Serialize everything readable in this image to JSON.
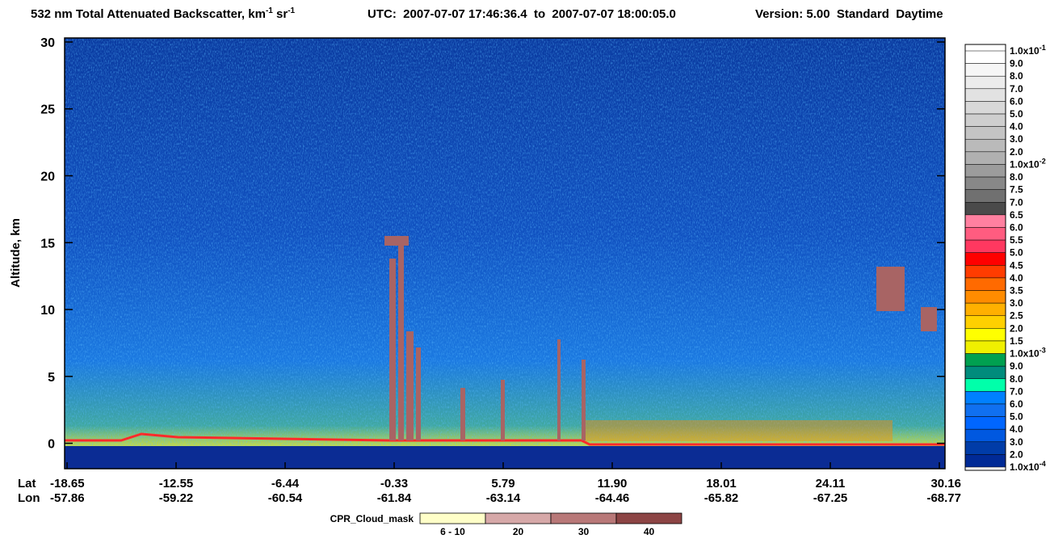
{
  "chart_data": {
    "type": "curtain",
    "title": [
      "532 nm Total Attenuated Backscatter, km",
      "-1",
      " sr",
      "-1"
    ],
    "time_range": "UTC:  2007-07-07 17:46:36.4  to  2007-07-07 18:00:05.0",
    "version": "Version: 5.00  Standard  Daytime",
    "y_label": "Altitude, km",
    "ylim": [
      -1.9,
      30.3
    ],
    "yticks": [
      0,
      5,
      10,
      15,
      20,
      25,
      30
    ],
    "x_row_labels": [
      "Lat",
      "Lon"
    ],
    "lat_ticks": [
      "-18.65",
      "-12.55",
      "-6.44",
      "-0.33",
      "5.79",
      "11.90",
      "18.01",
      "24.11",
      "30.16"
    ],
    "lon_ticks": [
      "-57.86",
      "-59.22",
      "-60.54",
      "-61.84",
      "-63.14",
      "-64.46",
      "-65.82",
      "-67.25",
      "-68.77"
    ],
    "colorbar": {
      "labels": [
        {
          "text": "1.0x10",
          "exp": "-1"
        },
        "9.0",
        "8.0",
        "7.0",
        "6.0",
        "5.0",
        "4.0",
        "3.0",
        "2.0",
        {
          "text": "1.0x10",
          "exp": "-2"
        },
        "8.0",
        "7.5",
        "7.0",
        "6.5",
        "6.0",
        "5.5",
        "5.0",
        "4.5",
        "4.0",
        "3.5",
        "3.0",
        "2.5",
        "2.0",
        "1.5",
        {
          "text": "1.0x10",
          "exp": "-3"
        },
        "9.0",
        "8.0",
        "7.0",
        "6.0",
        "5.0",
        "4.0",
        "3.0",
        "2.0",
        {
          "text": "1.0x10",
          "exp": "-4"
        }
      ],
      "colors": [
        "#ffffff",
        "#f6f6f6",
        "#ececec",
        "#e2e2e2",
        "#d8d8d8",
        "#cecece",
        "#c4c4c4",
        "#bababa",
        "#b0b0b0",
        "#9c9c9c",
        "#888888",
        "#707070",
        "#4a4a4a",
        "#ff80a0",
        "#ff5c80",
        "#ff3860",
        "#ff0000",
        "#ff3c00",
        "#ff6a00",
        "#ff8c00",
        "#ffb000",
        "#ffd000",
        "#ffff00",
        "#f0f000",
        "#00a050",
        "#008c7c",
        "#00ffaa",
        "#0080ff",
        "#1070f0",
        "#0066ff",
        "#0058e0",
        "#003ca8",
        "#002a96"
      ]
    },
    "mask_legend": {
      "title": "CPR_Cloud_mask",
      "labels": [
        "6 - 10",
        "20",
        "30",
        "40"
      ],
      "colors": [
        "#ffffc8",
        "#d6a8a8",
        "#b87878",
        "#8c4444"
      ]
    }
  }
}
